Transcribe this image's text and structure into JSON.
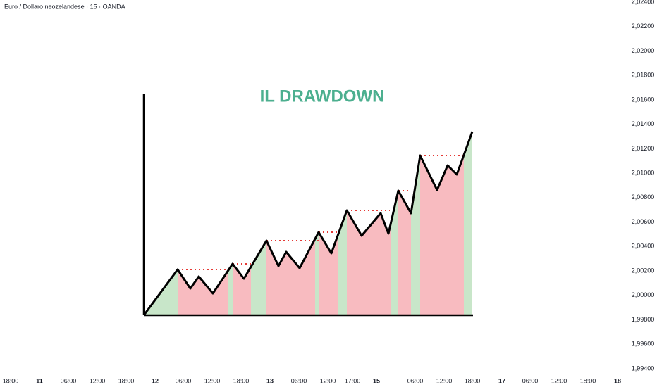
{
  "header": {
    "title": "Euro / Dollaro neozelandese · 15 · OANDA"
  },
  "drawing": {
    "title": "IL DRAWDOWN"
  },
  "price_axis": {
    "labels": [
      "2,02400",
      "2,02200",
      "2,02000",
      "2,01800",
      "2,01600",
      "2,01400",
      "2,01200",
      "2,01000",
      "2,00800",
      "2,00600",
      "2,00400",
      "2,00200",
      "2,00000",
      "1,99800",
      "1,99600",
      "1,99400"
    ]
  },
  "time_axis": {
    "labels": [
      "18:00",
      "11",
      "06:00",
      "12:00",
      "18:00",
      "12",
      "06:00",
      "12:00",
      "18:00",
      "13",
      "06:00",
      "12:00",
      "17:00",
      "15",
      "06:00",
      "12:00",
      "18:00",
      "17",
      "06:00",
      "12:00",
      "18:00",
      "18"
    ]
  }
}
